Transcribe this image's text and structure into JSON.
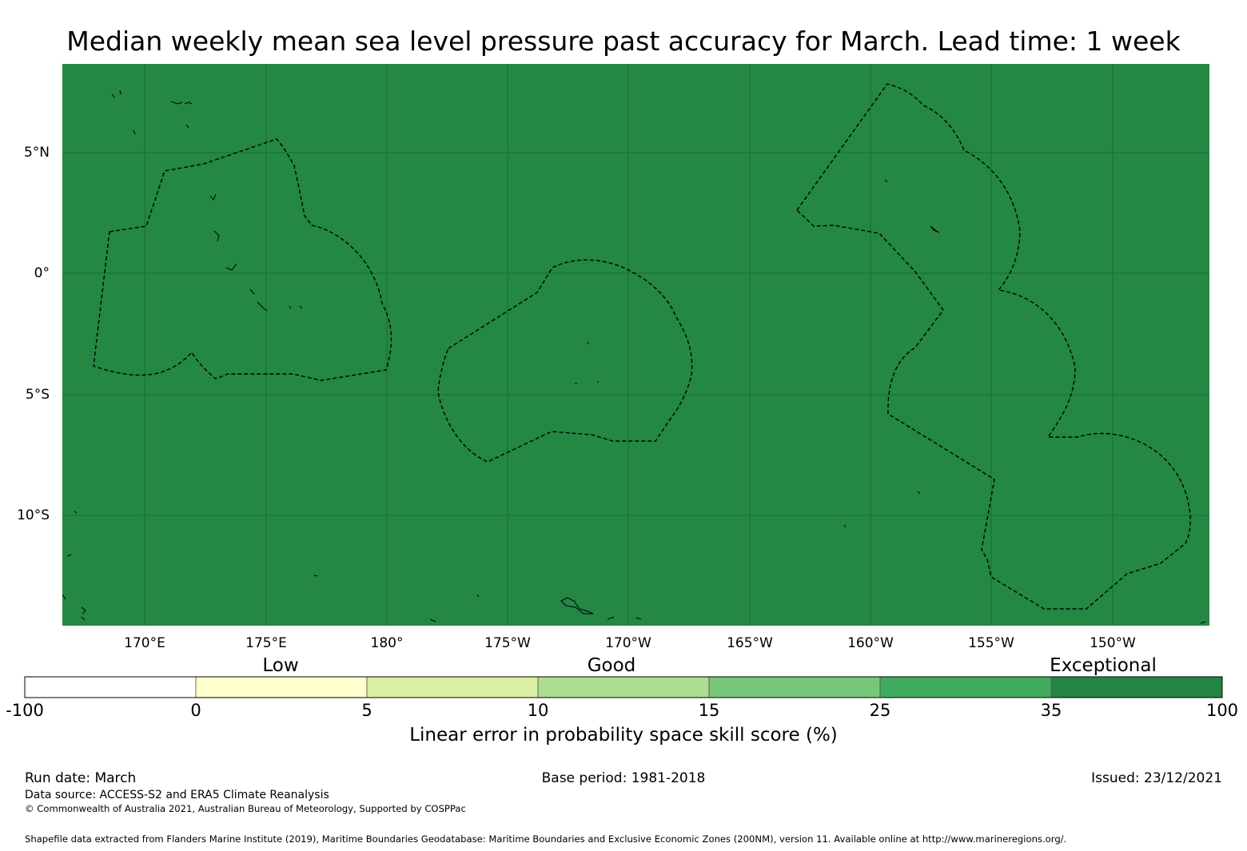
{
  "title": "Median weekly mean sea level pressure past accuracy for March. Lead time: 1 week",
  "map": {
    "fill_color": "#248744",
    "latitude_labels": [
      "5°N",
      "0°",
      "5°S",
      "10°S"
    ],
    "longitude_labels": [
      "170°E",
      "175°E",
      "180°",
      "175°W",
      "170°W",
      "165°W",
      "160°W",
      "155°W",
      "150°W"
    ],
    "features": [
      "coastlines",
      "eez-boundaries-dashed",
      "graticule"
    ]
  },
  "colorbar": {
    "categories": [
      "Low",
      "Good",
      "Exceptional"
    ],
    "ticks": [
      "-100",
      "0",
      "5",
      "10",
      "15",
      "25",
      "35",
      "100"
    ],
    "colors": [
      "#ffffff",
      "#ffffcc",
      "#d9f0a3",
      "#addd8e",
      "#78c679",
      "#41ab5d",
      "#238443"
    ],
    "label": "Linear error in probability space skill score (%)"
  },
  "footer": {
    "run_date": "Run date: March",
    "base_period": "Base period: 1981-2018",
    "issued": "Issued: 23/12/2021",
    "data_source": "Data source: ACCESS-S2 and ERA5 Climate Reanalysis",
    "copyright": "© Commonwealth of Australia 2021, Australian Bureau of Meteorology, Supported by COSPPac",
    "shapefile": "Shapefile data extracted from Flanders Marine Institute (2019), Maritime Boundaries Geodatabase: Maritime Boundaries and Exclusive Economic Zones (200NM), version 11. Available online at http://www.marineregions.org/."
  }
}
